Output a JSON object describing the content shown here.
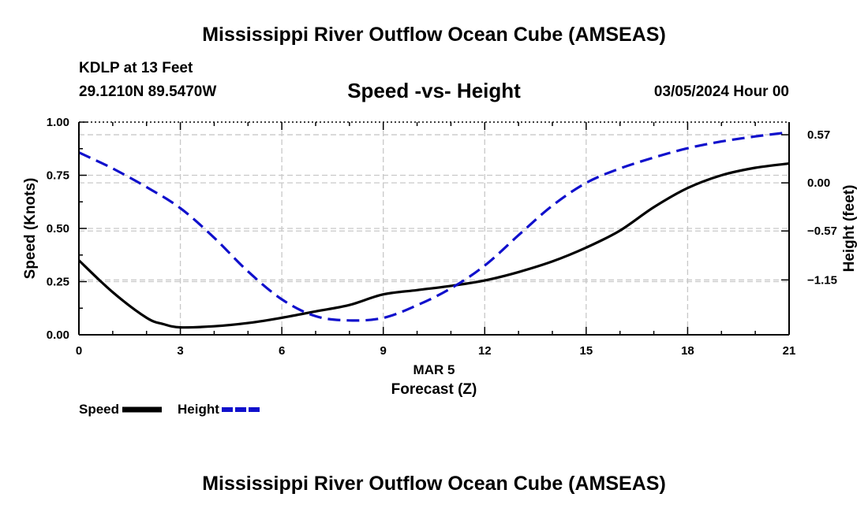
{
  "header": {
    "title": "Mississippi River Outflow Ocean Cube (AMSEAS)",
    "station": "KDLP at 13 Feet",
    "coords": "29.1210N  89.5470W",
    "date": "03/05/2024 Hour 00"
  },
  "footer": {
    "title": "Mississippi River Outflow Ocean Cube (AMSEAS)"
  },
  "legend": {
    "speed_label": "Speed",
    "height_label": "Height"
  },
  "chart_data": {
    "type": "line",
    "title": "Speed -vs- Height",
    "xlabel": "Forecast (Z)",
    "date_label": "MAR 5",
    "ylabel_left": "Speed (Knots)",
    "ylabel_right": "Height (feet)",
    "xlim": [
      0,
      21
    ],
    "x_ticks": [
      0,
      3,
      6,
      9,
      12,
      15,
      18,
      21
    ],
    "x_tick_labels": [
      "0",
      "3",
      "6",
      "9",
      "12",
      "15",
      "18",
      "21"
    ],
    "ylim_left": [
      0,
      1
    ],
    "y_left_ticks": [
      0,
      0.25,
      0.5,
      0.75,
      1
    ],
    "y_left_tick_labels": [
      "0.00",
      "0.25",
      "0.50",
      "0.75",
      "1.00"
    ],
    "ylim_right": [
      -1.8,
      0.72
    ],
    "y_right_ticks": [
      -1.15,
      -0.57,
      0.0,
      0.57
    ],
    "y_right_tick_labels": [
      "−1.15",
      "−0.57",
      "0.00",
      "0.57"
    ],
    "grid": true,
    "series": [
      {
        "name": "Speed",
        "axis": "left",
        "color": "#000000",
        "dash": "solid",
        "x": [
          0,
          1,
          2,
          2.5,
          3,
          4,
          5,
          6,
          7,
          8,
          9,
          10,
          11,
          12,
          13,
          14,
          15,
          16,
          17,
          18,
          19,
          20,
          21
        ],
        "values": [
          0.35,
          0.2,
          0.08,
          0.05,
          0.035,
          0.04,
          0.055,
          0.08,
          0.11,
          0.14,
          0.19,
          0.21,
          0.23,
          0.255,
          0.295,
          0.345,
          0.41,
          0.49,
          0.6,
          0.69,
          0.75,
          0.785,
          0.805
        ]
      },
      {
        "name": "Height",
        "axis": "right",
        "color": "#1010cc",
        "dash": "dashed",
        "x": [
          0,
          1,
          2,
          3,
          4,
          5,
          6,
          7,
          8,
          9,
          10,
          11,
          12,
          13,
          14,
          15,
          16,
          17,
          18,
          19,
          20,
          21
        ],
        "values": [
          0.36,
          0.17,
          -0.05,
          -0.3,
          -0.65,
          -1.05,
          -1.38,
          -1.58,
          -1.63,
          -1.6,
          -1.45,
          -1.25,
          -0.98,
          -0.62,
          -0.27,
          0.0,
          0.17,
          0.3,
          0.41,
          0.49,
          0.55,
          0.6
        ]
      }
    ]
  }
}
